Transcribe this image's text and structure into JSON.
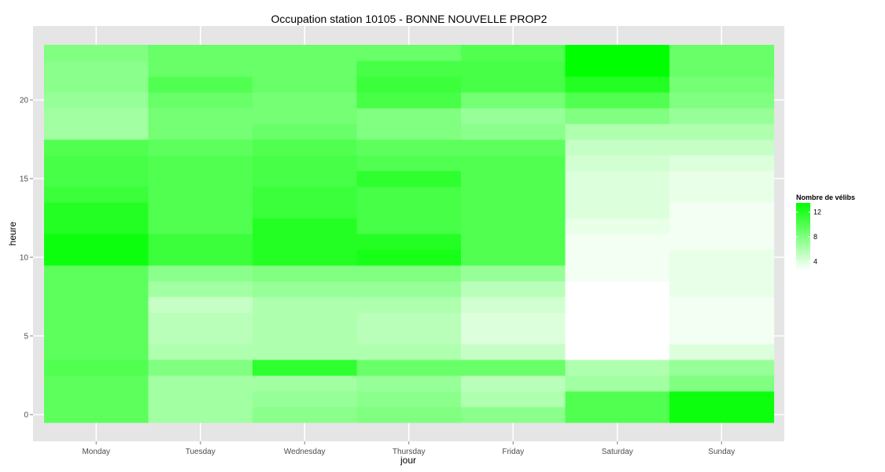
{
  "chart_data": {
    "type": "heatmap",
    "title": "Occupation station 10105 - BONNE NOUVELLE PROP2",
    "xlabel": "jour",
    "ylabel": "heure",
    "categories": [
      "Monday",
      "Tuesday",
      "Wednesday",
      "Thursday",
      "Friday",
      "Saturday",
      "Sunday"
    ],
    "y": [
      0,
      1,
      2,
      3,
      4,
      5,
      6,
      7,
      8,
      9,
      10,
      11,
      12,
      13,
      14,
      15,
      16,
      17,
      18,
      19,
      20,
      21,
      22,
      23
    ],
    "y_ticks": [
      0,
      5,
      10,
      15,
      20
    ],
    "y_tick_labels": [
      "0",
      "5",
      "10",
      "15",
      "20"
    ],
    "ylim": [
      -0.5,
      23.5
    ],
    "grid": true,
    "legend": {
      "title": "Nombre de vélibs",
      "placement": "right",
      "ticks": [
        4,
        8,
        12
      ],
      "tick_labels": [
        "4",
        "8",
        "12"
      ],
      "range": [
        2.5,
        13.5
      ],
      "low_color": "#ffffff",
      "high_color": "#00ff00"
    },
    "values": [
      [
        9.5,
        6.5,
        7.5,
        8.0,
        7.5,
        10.0,
        13.0
      ],
      [
        9.5,
        6.5,
        7.0,
        7.5,
        6.0,
        10.0,
        13.0
      ],
      [
        9.5,
        6.5,
        6.5,
        7.0,
        5.5,
        6.5,
        8.0
      ],
      [
        10.0,
        8.0,
        11.5,
        9.0,
        9.0,
        6.0,
        7.0
      ],
      [
        9.5,
        6.0,
        6.0,
        6.0,
        5.0,
        2.5,
        4.0
      ],
      [
        9.5,
        5.5,
        6.0,
        5.5,
        4.0,
        2.0,
        3.0
      ],
      [
        9.5,
        5.5,
        6.0,
        5.5,
        4.0,
        2.0,
        3.0
      ],
      [
        9.5,
        5.0,
        6.0,
        6.0,
        4.5,
        2.0,
        3.0
      ],
      [
        9.5,
        6.5,
        7.0,
        7.0,
        5.5,
        2.5,
        3.5
      ],
      [
        9.5,
        7.5,
        8.0,
        8.0,
        7.0,
        3.0,
        3.5
      ],
      [
        13.0,
        11.0,
        12.0,
        12.5,
        10.0,
        3.0,
        3.5
      ],
      [
        13.0,
        11.0,
        12.0,
        12.0,
        10.0,
        3.0,
        3.0
      ],
      [
        12.0,
        10.0,
        12.0,
        10.5,
        10.0,
        3.5,
        3.0
      ],
      [
        12.0,
        10.0,
        11.0,
        10.5,
        10.0,
        4.0,
        3.0
      ],
      [
        11.0,
        10.0,
        11.0,
        10.5,
        10.0,
        4.0,
        3.5
      ],
      [
        10.5,
        10.0,
        10.5,
        11.5,
        10.0,
        4.0,
        3.5
      ],
      [
        10.5,
        10.0,
        10.5,
        10.0,
        10.0,
        4.5,
        4.0
      ],
      [
        10.0,
        9.5,
        10.0,
        9.5,
        9.5,
        5.0,
        5.0
      ],
      [
        6.5,
        8.5,
        9.0,
        8.0,
        7.5,
        6.0,
        6.0
      ],
      [
        6.5,
        8.5,
        8.5,
        8.0,
        7.0,
        8.0,
        7.0
      ],
      [
        7.0,
        9.0,
        8.5,
        10.5,
        8.5,
        10.0,
        8.0
      ],
      [
        7.5,
        10.0,
        9.0,
        11.0,
        10.5,
        12.0,
        8.5
      ],
      [
        7.5,
        9.0,
        9.0,
        10.5,
        10.5,
        13.5,
        9.0
      ],
      [
        8.0,
        9.0,
        9.0,
        9.0,
        10.0,
        13.5,
        9.0
      ]
    ]
  }
}
